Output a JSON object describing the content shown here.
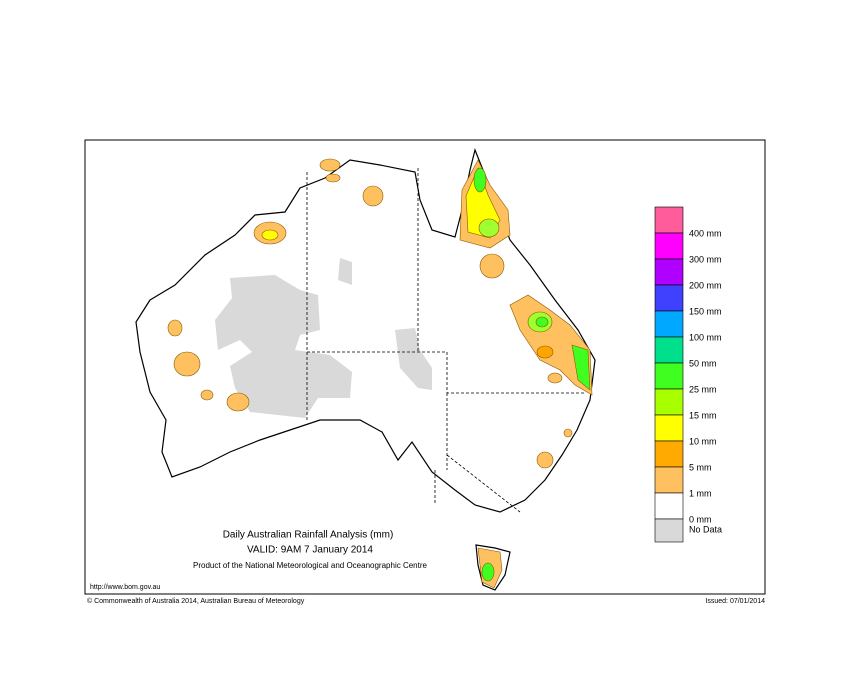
{
  "title": "Daily Australian Rainfall Analysis (mm)",
  "valid": "VALID: 9AM  7 January 2014",
  "product": "Product of the National Meteorological and Oceanographic Centre",
  "url": "http://www.bom.gov.au",
  "copyright": "© Commonwealth of Australia 2014, Australian Bureau of Meteorology",
  "issued": "Issued: 07/01/2014",
  "legend": {
    "labels": [
      "400 mm",
      "300 mm",
      "200 mm",
      "150 mm",
      "100 mm",
      "50 mm",
      "25 mm",
      "15 mm",
      "10 mm",
      "5 mm",
      "1 mm",
      "0 mm"
    ],
    "no_data": "No Data"
  }
}
